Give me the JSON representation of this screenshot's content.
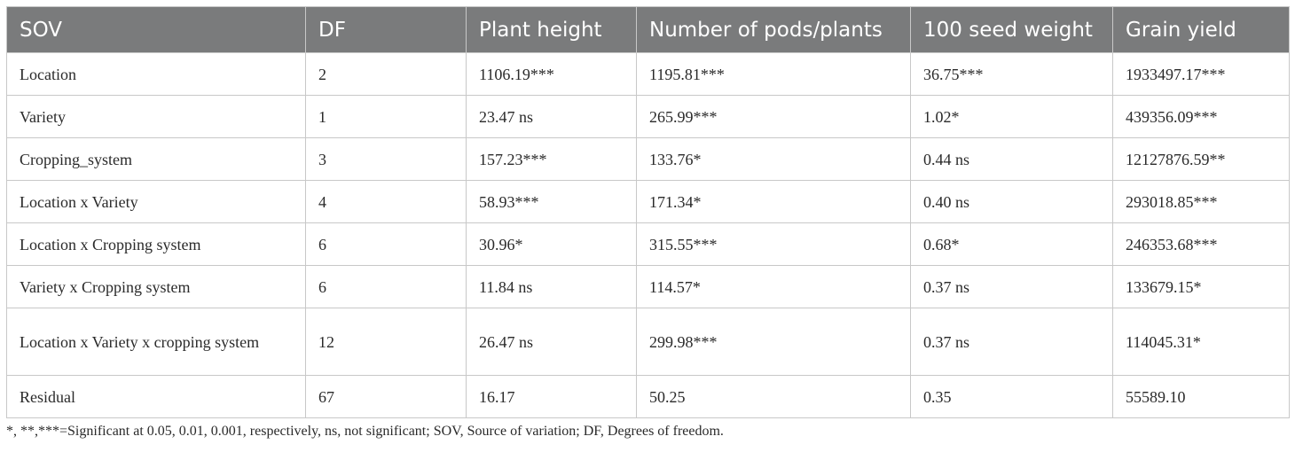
{
  "headers": [
    "SOV",
    "DF",
    "Plant height",
    "Number of pods/plants",
    "100 seed weight",
    "Grain yield"
  ],
  "rows": [
    [
      "Location",
      "2",
      "1106.19***",
      "1195.81***",
      "36.75***",
      "1933497.17***"
    ],
    [
      "Variety",
      "1",
      "23.47 ns",
      "265.99***",
      "1.02*",
      "439356.09***"
    ],
    [
      "Cropping_system",
      "3",
      "157.23***",
      "133.76*",
      "0.44 ns",
      "12127876.59**"
    ],
    [
      "Location x Variety",
      "4",
      "58.93***",
      "171.34*",
      "0.40 ns",
      "293018.85***"
    ],
    [
      "Location x Cropping system",
      "6",
      "30.96*",
      "315.55***",
      "0.68*",
      "246353.68***"
    ],
    [
      "Variety x Cropping system",
      "6",
      "11.84 ns",
      "114.57*",
      "0.37 ns",
      "133679.15*"
    ],
    [
      "Location x Variety x cropping system",
      "12",
      "26.47 ns",
      "299.98***",
      "0.37 ns",
      "114045.31*"
    ],
    [
      "Residual",
      "67",
      "16.17",
      "50.25",
      "0.35",
      "55589.10"
    ]
  ],
  "footnote": "*, **,***=Significant at 0.05, 0.01, 0.001, respectively, ns, not significant; SOV, Source of variation; DF, Degrees of freedom."
}
